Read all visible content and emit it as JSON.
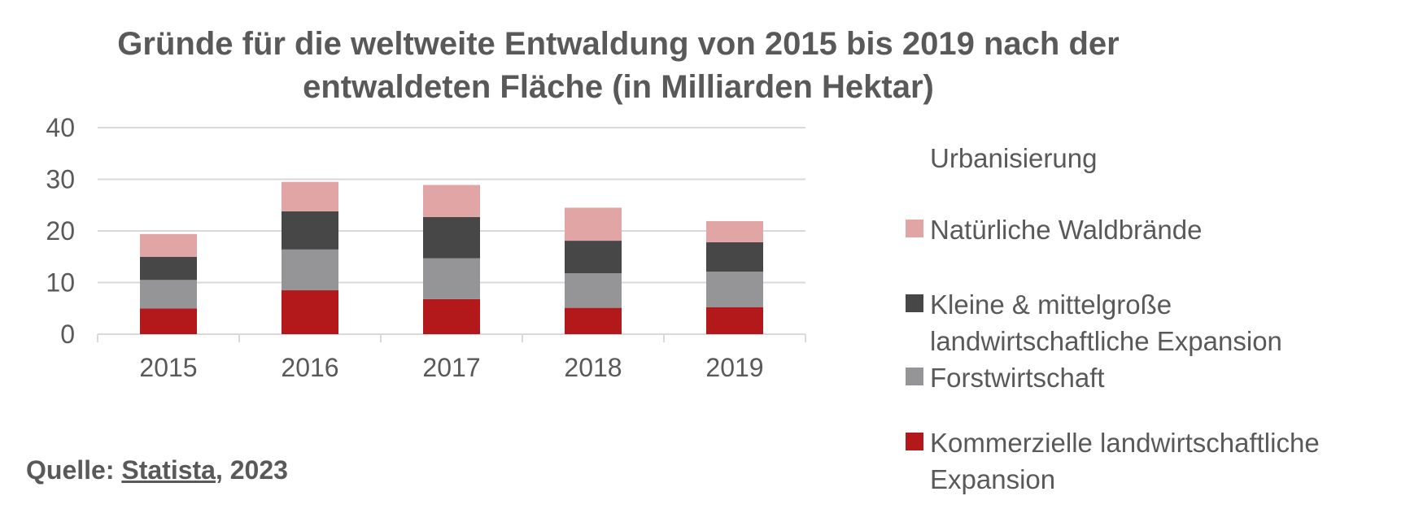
{
  "title_lines": [
    "Gründe für die weltweite Entwaldung von 2015 bis 2019 nach der",
    "entwaldeten Fläche (in Milliarden Hektar)"
  ],
  "source": {
    "prefix": "Quelle: ",
    "link": "Statista",
    "suffix": ", 2023"
  },
  "legend": [
    {
      "label": "Urbanisierung",
      "color": "#ffffff"
    },
    {
      "label": "Natürliche Waldbrände",
      "color": "#e2a5a6"
    },
    {
      "label": "Kleine & mittelgroße landwirtschaftliche Expansion",
      "color": "#474747"
    },
    {
      "label": "Forstwirtschaft",
      "color": "#959496"
    },
    {
      "label": "Kommerzielle landwirtschaftliche Expansion",
      "color": "#b3191a"
    }
  ],
  "chart_data": {
    "type": "bar",
    "stacked": true,
    "categories": [
      "2015",
      "2016",
      "2017",
      "2018",
      "2019"
    ],
    "series": [
      {
        "name": "Kommerzielle landwirtschaftliche Expansion",
        "color": "#b3191a",
        "values": [
          5.0,
          8.5,
          6.8,
          5.1,
          5.2
        ]
      },
      {
        "name": "Forstwirtschaft",
        "color": "#959496",
        "values": [
          5.5,
          7.9,
          7.9,
          6.7,
          6.9
        ]
      },
      {
        "name": "Kleine & mittelgroße landwirtschaftliche Expansion",
        "color": "#474747",
        "values": [
          4.5,
          7.4,
          8.0,
          6.3,
          5.7
        ]
      },
      {
        "name": "Natürliche Waldbrände",
        "color": "#e2a5a6",
        "values": [
          4.4,
          5.7,
          6.2,
          6.4,
          4.1
        ]
      },
      {
        "name": "Urbanisierung",
        "color": "#ffffff",
        "values": [
          0,
          0,
          0,
          0,
          0
        ]
      }
    ],
    "ylim": [
      0,
      40
    ],
    "yticks": [
      0,
      10,
      20,
      30,
      40
    ],
    "grid": true,
    "legend_position": "right"
  }
}
